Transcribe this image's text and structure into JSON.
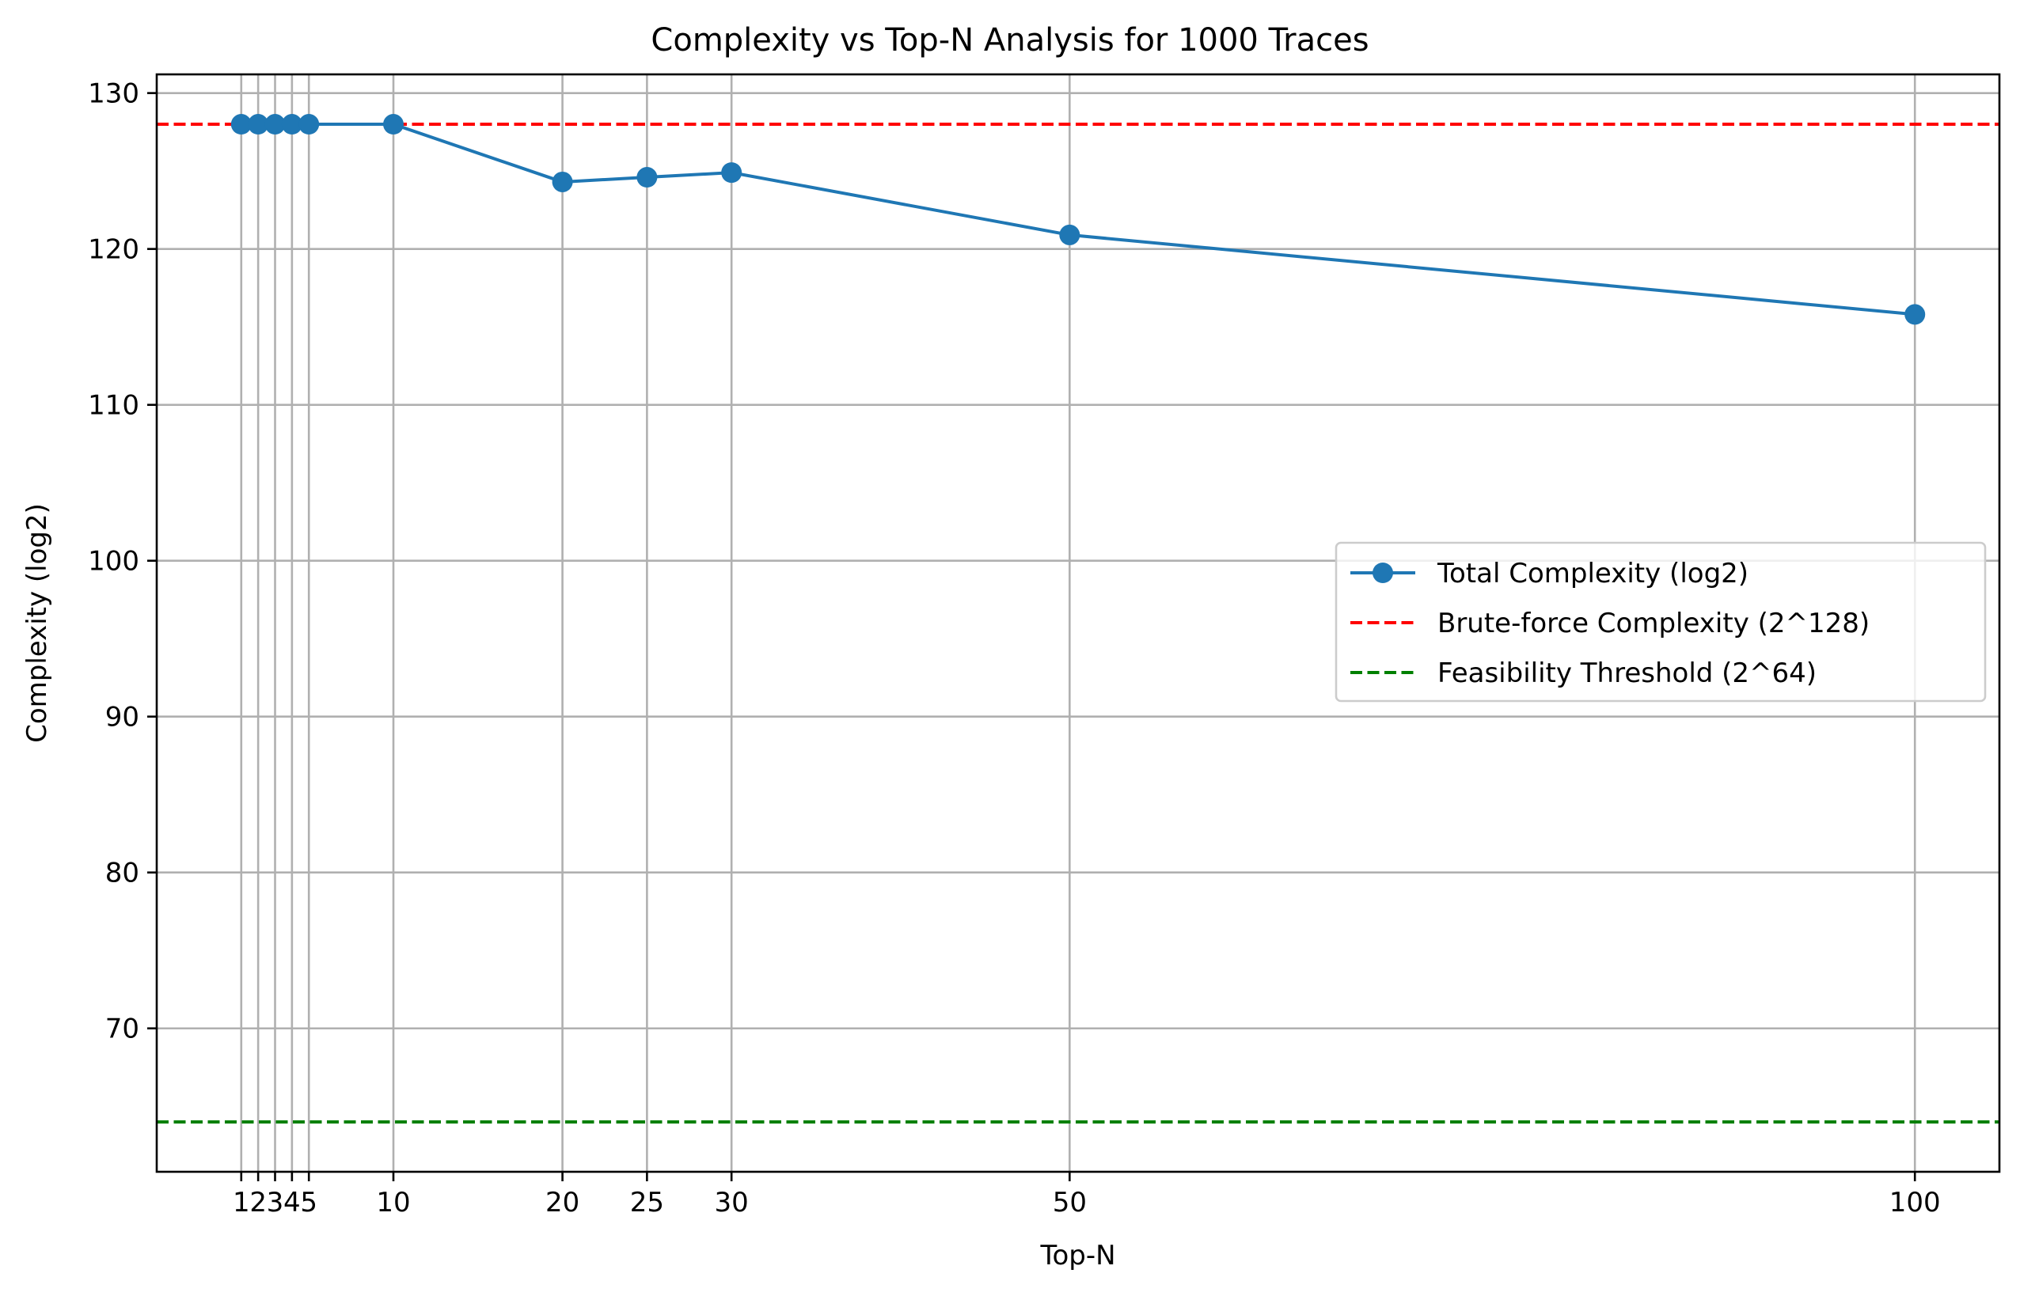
{
  "chart_data": {
    "type": "line",
    "title": "Complexity vs Top-N Analysis for 1000 Traces",
    "xlabel": "Top-N",
    "ylabel": "Complexity (log2)",
    "x": [
      1,
      2,
      3,
      4,
      5,
      10,
      20,
      25,
      30,
      50,
      100
    ],
    "xticks": [
      1,
      2,
      3,
      4,
      5,
      10,
      20,
      25,
      30,
      50,
      100
    ],
    "yticks": [
      70,
      80,
      90,
      100,
      110,
      120,
      130
    ],
    "xlim": [
      -4,
      105
    ],
    "ylim": [
      60.8,
      131.2
    ],
    "grid": true,
    "legend_position": "center-right",
    "series": [
      {
        "name": "Total Complexity (log2)",
        "style": "line-marker",
        "color": "#1f77b4",
        "values": [
          128,
          128,
          128,
          128,
          128,
          128,
          124.3,
          124.6,
          124.9,
          120.9,
          115.8
        ]
      }
    ],
    "reference_lines": [
      {
        "name": "Brute-force Complexity (2^128)",
        "y": 128,
        "color": "#ff0000",
        "style": "dashed"
      },
      {
        "name": "Feasibility Threshold (2^64)",
        "y": 64,
        "color": "#008000",
        "style": "dashed"
      }
    ]
  }
}
